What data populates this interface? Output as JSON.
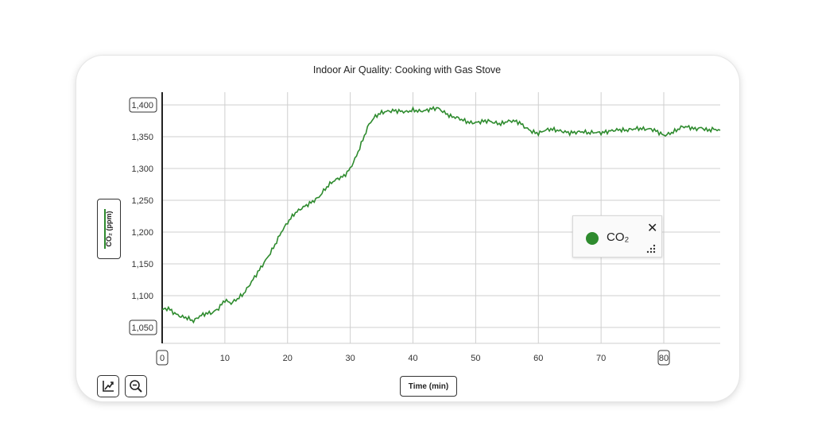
{
  "chart_data": {
    "type": "line",
    "title": "Indoor Air Quality: Cooking with Gas Stove",
    "xlabel": "Time (min)",
    "ylabel": "CO₂ (ppm)",
    "xlim": [
      0,
      89
    ],
    "ylim": [
      1025,
      1420
    ],
    "x_ticks": [
      0,
      10,
      20,
      30,
      40,
      50,
      60,
      70,
      80
    ],
    "y_ticks": [
      1050,
      1100,
      1150,
      1200,
      1250,
      1300,
      1350,
      1400
    ],
    "y_tick_labels": [
      "1,050",
      "1,100",
      "1,150",
      "1,200",
      "1,250",
      "1,300",
      "1,350",
      "1,400"
    ],
    "boxed_ticks": {
      "x": [
        0,
        80
      ],
      "y": [
        1050,
        1400
      ]
    },
    "grid": true,
    "legend_position": "right",
    "series": [
      {
        "name": "CO₂",
        "color": "#2e8b2e",
        "x": [
          0,
          1,
          2,
          3,
          4,
          5,
          6,
          7,
          8,
          9,
          10,
          11,
          12,
          13,
          14,
          15,
          16,
          17,
          18,
          19,
          20,
          21,
          22,
          23,
          24,
          25,
          26,
          27,
          28,
          29,
          30,
          31,
          32,
          33,
          34,
          35,
          36,
          37,
          38,
          39,
          40,
          41,
          42,
          43,
          44,
          45,
          46,
          47,
          48,
          49,
          50,
          51,
          52,
          53,
          54,
          55,
          56,
          57,
          58,
          59,
          60,
          61,
          62,
          63,
          64,
          65,
          66,
          67,
          68,
          69,
          70,
          71,
          72,
          73,
          74,
          75,
          76,
          77,
          78,
          79,
          80,
          81,
          82,
          83,
          84,
          85,
          86,
          87,
          88,
          89
        ],
        "y": [
          1078,
          1080,
          1072,
          1067,
          1065,
          1060,
          1068,
          1072,
          1073,
          1080,
          1093,
          1088,
          1095,
          1103,
          1118,
          1133,
          1148,
          1163,
          1180,
          1200,
          1215,
          1228,
          1236,
          1242,
          1248,
          1255,
          1268,
          1278,
          1284,
          1288,
          1300,
          1320,
          1345,
          1370,
          1382,
          1388,
          1390,
          1391,
          1390,
          1389,
          1392,
          1390,
          1391,
          1394,
          1395,
          1388,
          1382,
          1380,
          1376,
          1372,
          1372,
          1374,
          1375,
          1372,
          1370,
          1374,
          1375,
          1372,
          1364,
          1358,
          1355,
          1360,
          1362,
          1360,
          1358,
          1356,
          1357,
          1358,
          1356,
          1357,
          1356,
          1358,
          1360,
          1361,
          1360,
          1362,
          1363,
          1362,
          1362,
          1358,
          1352,
          1355,
          1360,
          1366,
          1365,
          1362,
          1364,
          1360,
          1362,
          1360
        ]
      }
    ]
  },
  "legend": {
    "label": "CO₂",
    "close_label": "✕"
  },
  "toolbar": {
    "autoscale_icon": "chart-autoscale-icon",
    "zoom_out_icon": "zoom-out-icon"
  }
}
